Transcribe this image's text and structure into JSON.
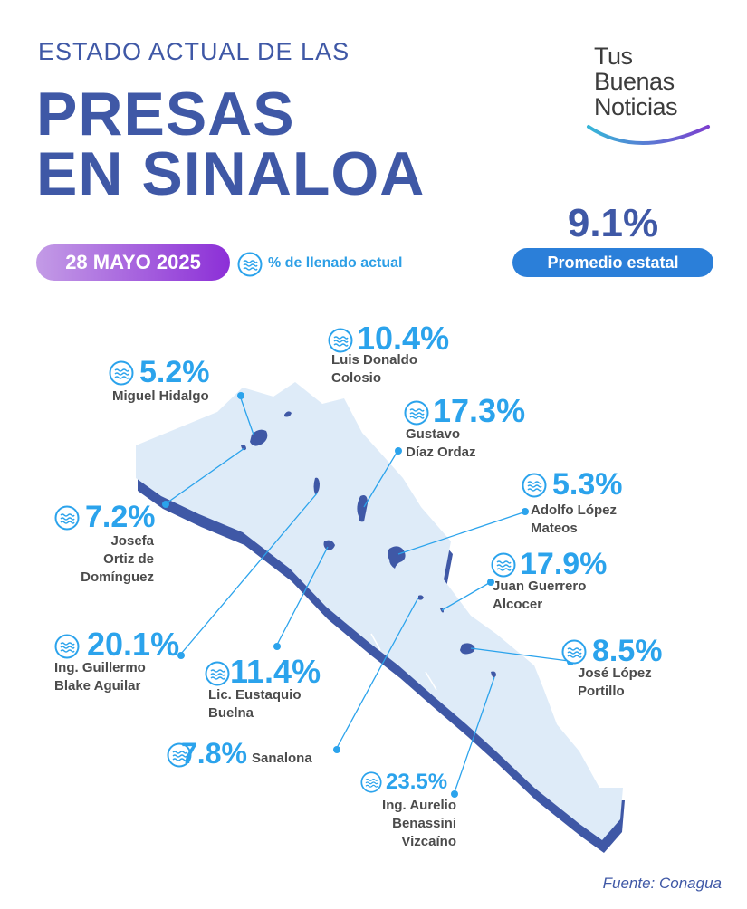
{
  "header": {
    "subtitle": "ESTADO ACTUAL DE LAS",
    "title_line1": "PRESAS",
    "title_line2": "EN SINALOA"
  },
  "brand": {
    "line1": "Tus",
    "line2": "Buenas",
    "line3": "Noticias"
  },
  "average": {
    "value": "9.1%",
    "label": "Promedio estatal"
  },
  "date": "28 MAYO 2025",
  "legend": {
    "icon": "water-icon",
    "text": "% de llenado actual"
  },
  "source": "Fuente: Conagua",
  "colors": {
    "primary": "#3f58a6",
    "accent": "#2ba3ec",
    "pill_blue": "#2b7fd9",
    "date_gradient_start": "#c39be6",
    "date_gradient_end": "#8c2fd7",
    "map_fill": "#deebf8",
    "map_shadow": "#3f58a6"
  },
  "dams": [
    {
      "id": "miguel-hidalgo",
      "percent": "5.2%",
      "name_lines": [
        "Miguel Hidalgo"
      ]
    },
    {
      "id": "luis-donaldo-colosio",
      "percent": "10.4%",
      "name_lines": [
        "Luis Donaldo",
        "Colosio"
      ]
    },
    {
      "id": "gustavo-diaz-ordaz",
      "percent": "17.3%",
      "name_lines": [
        "Gustavo",
        "Díaz Ordaz"
      ]
    },
    {
      "id": "josefa-ortiz",
      "percent": "7.2%",
      "name_lines": [
        "Josefa",
        "Ortiz de",
        "Domínguez"
      ]
    },
    {
      "id": "adolfo-lopez-mateos",
      "percent": "5.3%",
      "name_lines": [
        "Adolfo López",
        "Mateos"
      ]
    },
    {
      "id": "juan-guerrero-alcocer",
      "percent": "17.9%",
      "name_lines": [
        "Juan Guerrero",
        "Alcocer"
      ]
    },
    {
      "id": "guillermo-blake",
      "percent": "20.1%",
      "name_lines": [
        "Ing. Guillermo",
        "Blake Aguilar"
      ]
    },
    {
      "id": "jose-lopez-portillo",
      "percent": "8.5%",
      "name_lines": [
        "José López",
        "Portillo"
      ]
    },
    {
      "id": "eustaquio-buelna",
      "percent": "11.4%",
      "name_lines": [
        "Lic. Eustaquio",
        "Buelna"
      ]
    },
    {
      "id": "sanalona",
      "percent": "7.8%",
      "name_lines": [
        "Sanalona"
      ]
    },
    {
      "id": "aurelio-benassini",
      "percent": "23.5%",
      "name_lines": [
        "Ing. Aurelio",
        "Benassini",
        "Vizcaíno"
      ]
    }
  ]
}
